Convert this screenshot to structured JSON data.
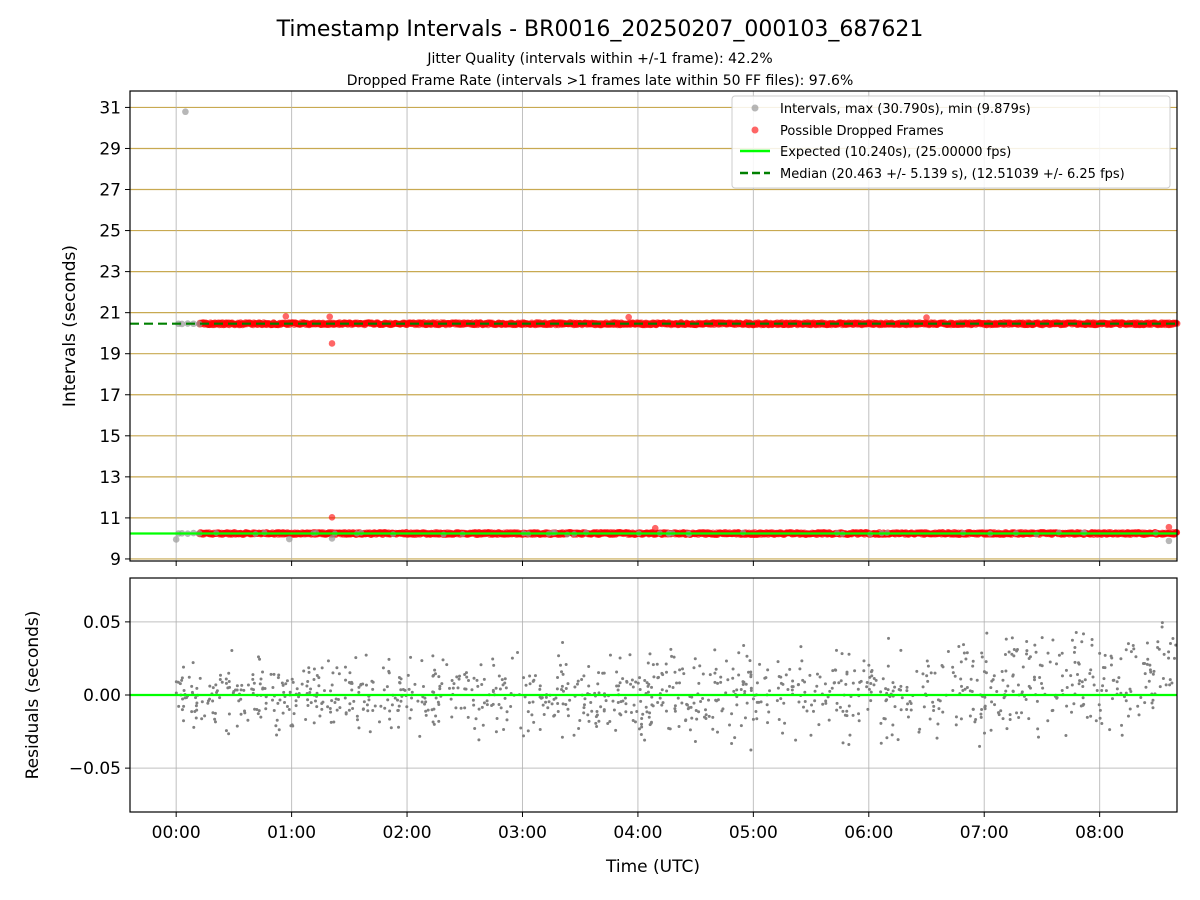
{
  "figure": {
    "title": "Timestamp Intervals - BR0016_20250207_000103_687621",
    "subtitle_1": "Jitter Quality (intervals within +/-1 frame): 42.2%",
    "subtitle_2": "Dropped Frame Rate (intervals >1 frames late within 50 FF files): 97.6%"
  },
  "chart_data": [
    {
      "type": "scatter",
      "ylabel": "Intervals (seconds)",
      "xlim": [
        -0.4,
        8.67
      ],
      "ylim": [
        8.9,
        31.8
      ],
      "x_ticks": [
        0,
        1,
        2,
        3,
        4,
        5,
        6,
        7,
        8
      ],
      "x_tick_labels": [],
      "y_ticks": [
        9,
        11,
        13,
        15,
        17,
        19,
        21,
        23,
        25,
        27,
        29,
        31
      ],
      "y_tick_labels": [
        "9",
        "11",
        "13",
        "15",
        "17",
        "19",
        "21",
        "23",
        "25",
        "27",
        "29",
        "31"
      ],
      "reference_lines": {
        "color": "#c8a951",
        "values": [
          9,
          11,
          13,
          15,
          17,
          19,
          21,
          23,
          25,
          27,
          29,
          31
        ]
      },
      "grid": true,
      "legend_position": "top-right",
      "legend": [
        "Intervals, max (30.790s), min (9.879s)",
        "Possible Dropped Frames",
        "Expected (10.240s), (25.00000 fps)",
        "Median (20.463 +/- 5.139 s), (12.51039 +/- 6.25 fps)"
      ],
      "series": [
        {
          "name": "Intervals, max (30.790s), min (9.879s)",
          "color": "#999999",
          "points": [
            [
              0.08,
              30.79
            ],
            [
              0.02,
              20.46
            ],
            [
              0.05,
              20.45
            ],
            [
              0.1,
              20.47
            ],
            [
              0.15,
              20.46
            ],
            [
              0.2,
              20.45
            ],
            [
              0.02,
              10.24
            ],
            [
              0.05,
              10.25
            ],
            [
              0.1,
              10.23
            ],
            [
              0.15,
              10.26
            ],
            [
              0.2,
              10.24
            ],
            [
              0.0,
              9.95
            ],
            [
              0.98,
              9.97
            ],
            [
              1.35,
              10.0
            ],
            [
              8.6,
              9.88
            ]
          ]
        },
        {
          "name": "Possible Dropped Frames",
          "color": "#ff0000",
          "bands": [
            {
              "center": 20.46,
              "x_range": [
                0.2,
                8.67
              ]
            },
            {
              "center": 10.24,
              "x_range": [
                0.2,
                8.67
              ]
            }
          ],
          "points": [
            [
              1.35,
              19.5
            ],
            [
              1.35,
              11.03
            ],
            [
              0.95,
              20.82
            ],
            [
              1.33,
              20.8
            ],
            [
              3.92,
              20.78
            ],
            [
              6.5,
              20.76
            ],
            [
              8.6,
              10.55
            ],
            [
              4.15,
              10.5
            ]
          ]
        }
      ],
      "lines": [
        {
          "name": "Expected (10.240s), (25.00000 fps)",
          "y": 10.24,
          "color": "#00ff00",
          "style": "solid"
        },
        {
          "name": "Median (20.463 +/- 5.139 s), (12.51039 +/- 6.25 fps)",
          "y": 20.463,
          "color": "#008000",
          "style": "dashed"
        }
      ]
    },
    {
      "type": "scatter",
      "xlabel": "Time (UTC)",
      "ylabel": "Residuals (seconds)",
      "xlim": [
        -0.4,
        8.67
      ],
      "ylim": [
        -0.08,
        0.08
      ],
      "x_ticks": [
        0,
        1,
        2,
        3,
        4,
        5,
        6,
        7,
        8
      ],
      "x_tick_labels": [
        "00:00",
        "01:00",
        "02:00",
        "03:00",
        "04:00",
        "05:00",
        "06:00",
        "07:00",
        "08:00"
      ],
      "y_ticks": [
        -0.05,
        0.0,
        0.05
      ],
      "y_tick_labels": [
        "−0.05",
        "0.00",
        "0.05"
      ],
      "grid": true,
      "series": [
        {
          "name": "",
          "color": "#808080",
          "x_range": [
            0.0,
            8.67
          ],
          "y_range": [
            -0.08,
            0.08
          ],
          "spread_start": 0.022,
          "spread_end": 0.035,
          "offset_end": 0.015
        }
      ],
      "lines": [
        {
          "y": 0.0,
          "color": "#00ff00",
          "style": "solid"
        }
      ]
    }
  ]
}
